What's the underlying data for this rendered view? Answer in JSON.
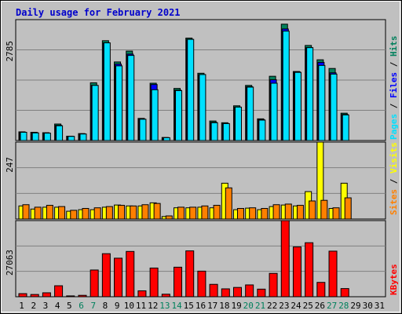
{
  "title": "Daily usage for February 2021",
  "colors": {
    "hits": "#00805c",
    "files": "#0000ff",
    "pages": "#00e0ff",
    "visits": "#ffff00",
    "sites": "#ff8000",
    "kbytes": "#ff0000",
    "weekend_day": "#00805c",
    "weekday": "#000000",
    "title": "#0000cc",
    "background": "#c0c0c0"
  },
  "labels": {
    "panel1_max": "2785",
    "panel2_max": "247",
    "panel3_max": "27063",
    "pages": "Pages",
    "files": "Files",
    "hits": "Hits",
    "visits": "Visits",
    "sites": "Sites",
    "kbytes": "KBytes",
    "sep": " / "
  },
  "chart_data": {
    "type": "bar",
    "title": "Daily usage for February 2021",
    "x": [
      "1",
      "2",
      "3",
      "4",
      "5",
      "6",
      "7",
      "8",
      "9",
      "10",
      "11",
      "12",
      "13",
      "14",
      "15",
      "16",
      "17",
      "18",
      "19",
      "20",
      "21",
      "22",
      "23",
      "24",
      "25",
      "26",
      "27",
      "28",
      "29",
      "30",
      "31"
    ],
    "weekend_days": [
      "6",
      "7",
      "13",
      "14",
      "20",
      "21",
      "27",
      "28"
    ],
    "series": [
      {
        "name": "Hits",
        "panel": 1,
        "values": [
          200,
          190,
          180,
          380,
          100,
          160,
          1330,
          2300,
          1810,
          2060,
          510,
          1320,
          70,
          1200,
          2360,
          1550,
          450,
          410,
          800,
          1270,
          500,
          1480,
          2680,
          1590,
          2190,
          1860,
          1660,
          630,
          0,
          0,
          0
        ]
      },
      {
        "name": "Files",
        "panel": 1,
        "values": [
          190,
          180,
          170,
          350,
          95,
          150,
          1270,
          2250,
          1760,
          1990,
          490,
          1290,
          65,
          1160,
          2330,
          1520,
          420,
          390,
          770,
          1240,
          480,
          1400,
          2570,
          1580,
          2140,
          1800,
          1560,
          600,
          0,
          0,
          0
        ]
      },
      {
        "name": "Pages",
        "panel": 1,
        "values": [
          190,
          175,
          170,
          340,
          95,
          150,
          1270,
          2250,
          1720,
          1960,
          490,
          1170,
          65,
          1150,
          2330,
          1520,
          410,
          390,
          770,
          1230,
          470,
          1320,
          2520,
          1570,
          2140,
          1730,
          1530,
          590,
          0,
          0,
          0
        ]
      },
      {
        "name": "Visits",
        "panel": 2,
        "values": [
          42,
          32,
          38,
          38,
          25,
          30,
          30,
          38,
          45,
          42,
          42,
          52,
          8,
          36,
          36,
          38,
          36,
          115,
          30,
          35,
          30,
          40,
          45,
          42,
          88,
          247,
          34,
          115,
          0,
          0,
          0
        ]
      },
      {
        "name": "Sites",
        "panel": 2,
        "values": [
          46,
          38,
          44,
          40,
          28,
          34,
          36,
          40,
          44,
          42,
          46,
          50,
          10,
          38,
          38,
          42,
          44,
          100,
          34,
          36,
          34,
          46,
          48,
          44,
          58,
          60,
          36,
          68,
          0,
          0,
          0
        ]
      },
      {
        "name": "KBytes",
        "panel": 3,
        "values": [
          1100,
          800,
          1400,
          3900,
          300,
          500,
          9500,
          15300,
          13700,
          16100,
          2100,
          10200,
          900,
          10500,
          16300,
          9100,
          4400,
          2800,
          3300,
          4200,
          2700,
          8300,
          27063,
          17700,
          19200,
          5100,
          16200,
          2900,
          0,
          0,
          0
        ]
      }
    ],
    "panel_max": {
      "panel1": 2785,
      "panel2": 247,
      "panel3": 27063
    },
    "grid": true,
    "legend": "right"
  }
}
